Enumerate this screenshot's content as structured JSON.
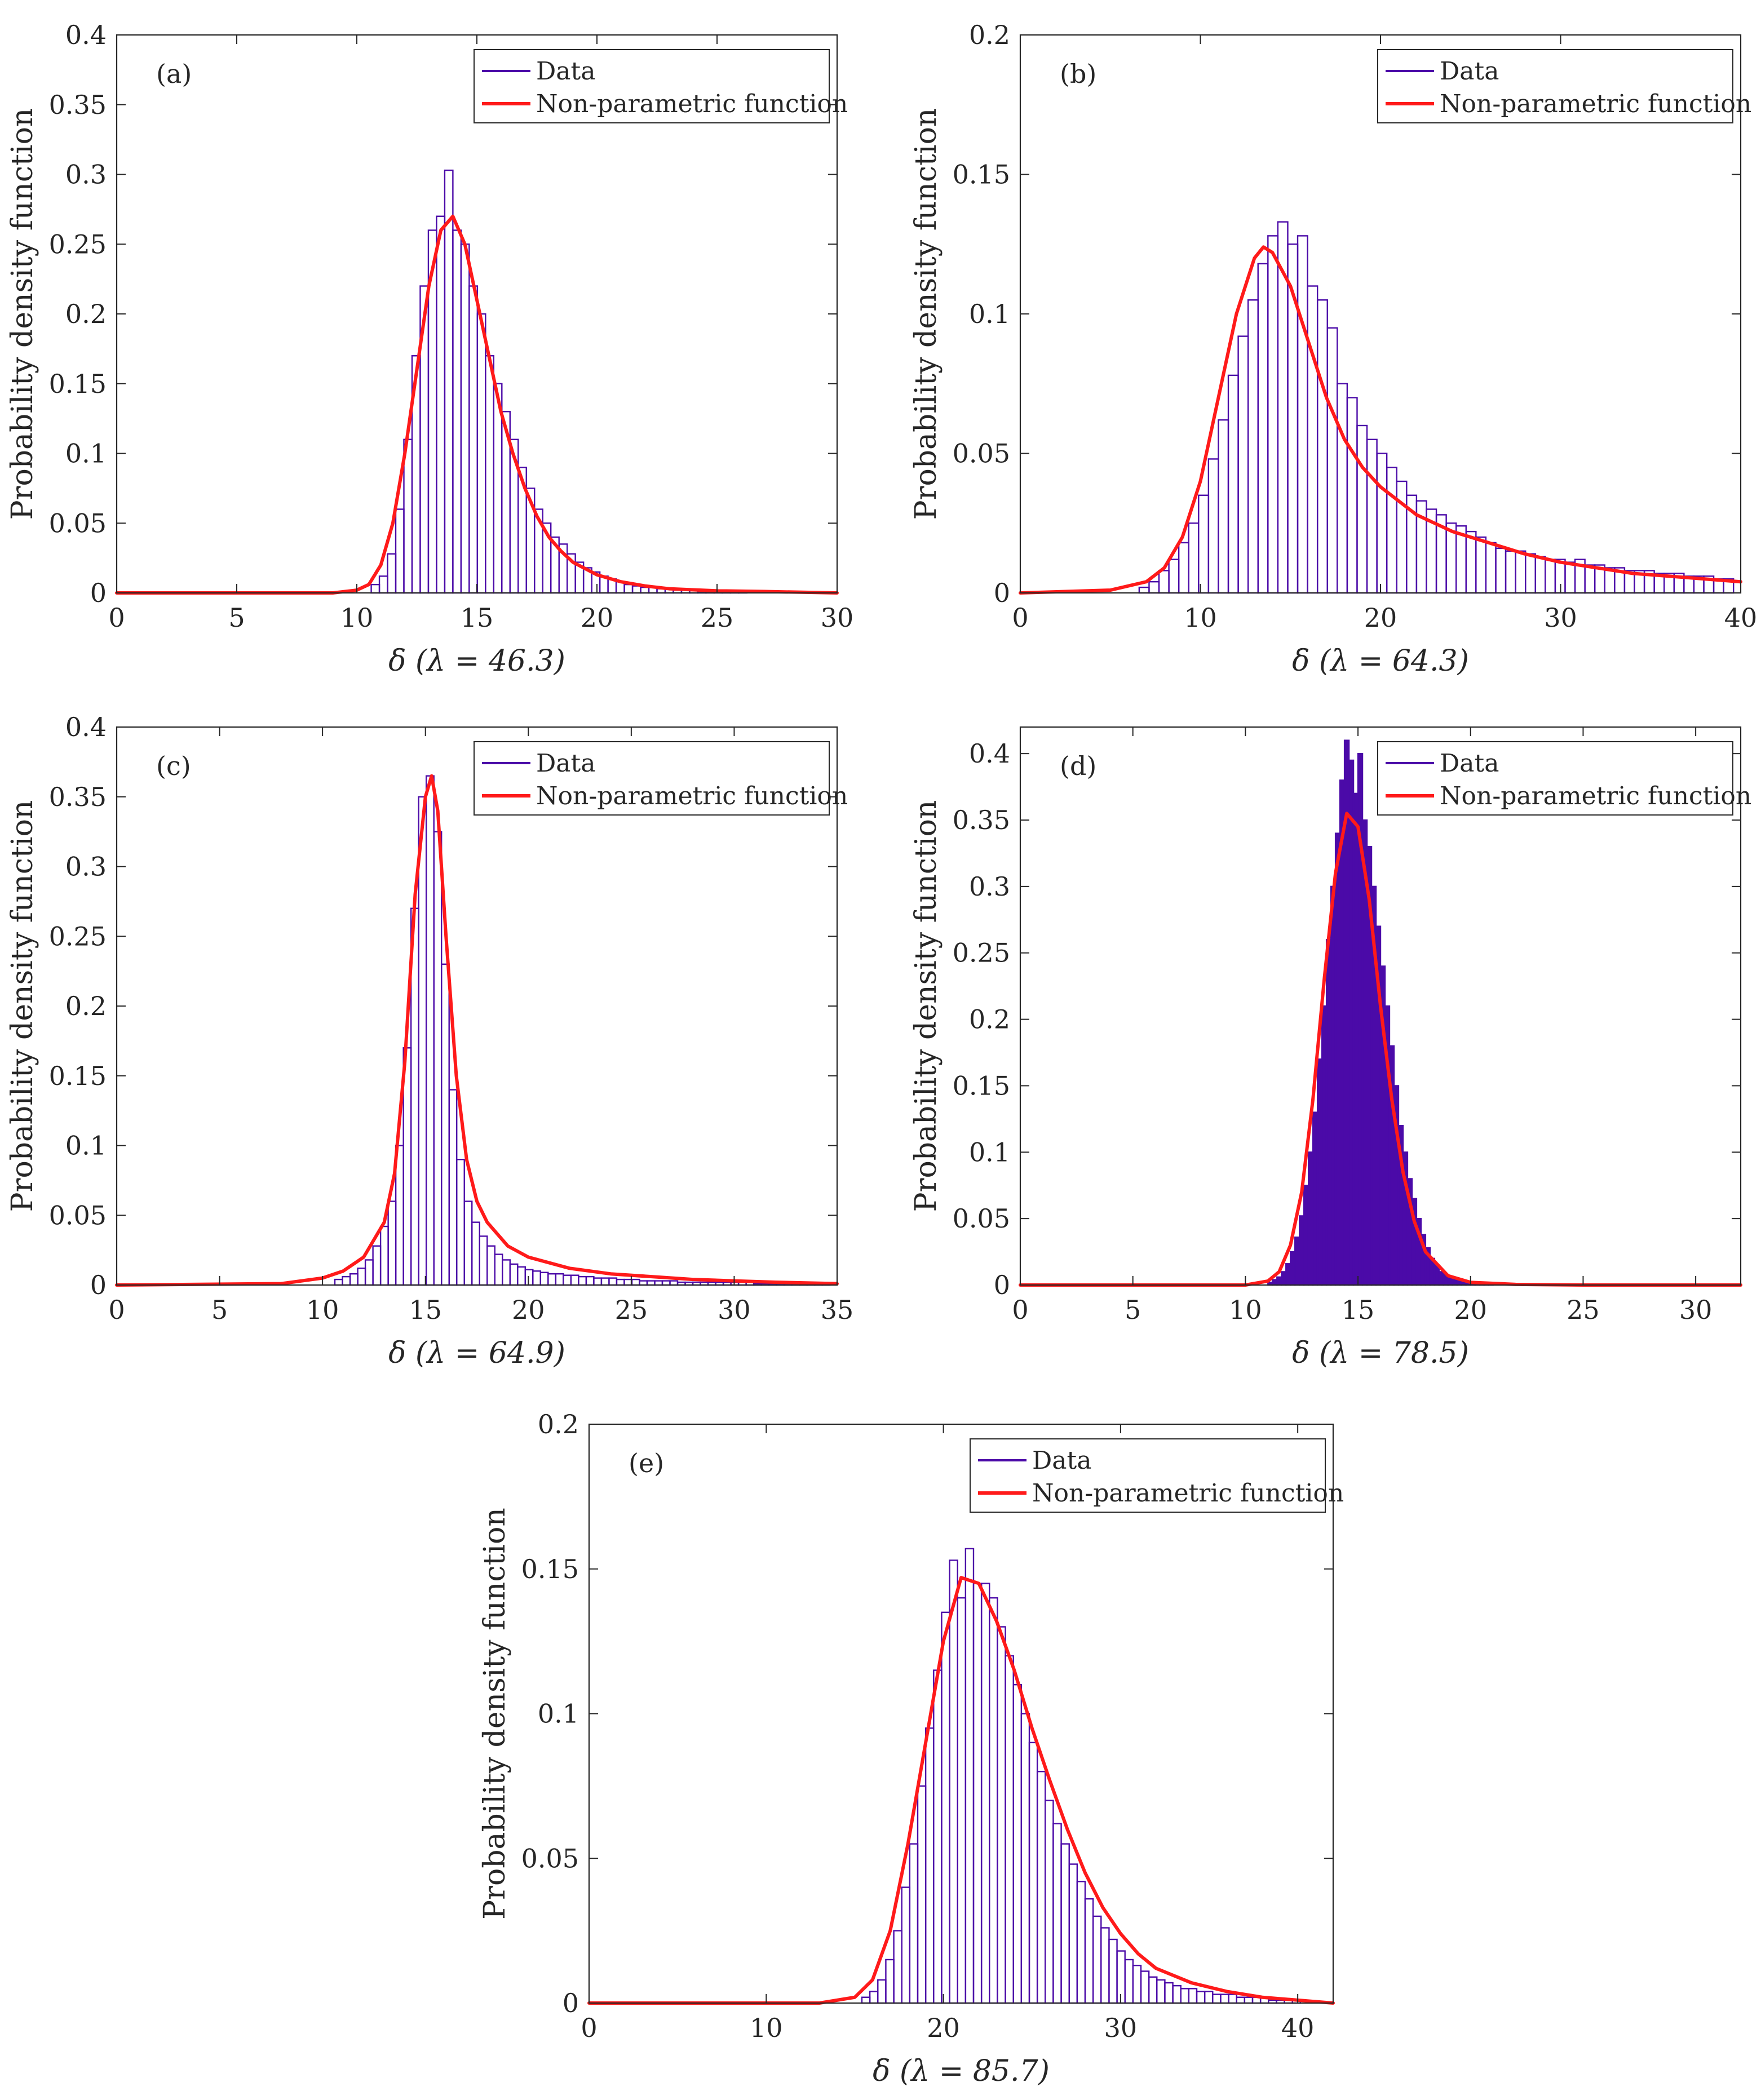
{
  "colors": {
    "data": "#4B0AA8",
    "fit": "#FF1A1A",
    "axis": "#262626",
    "fill": "#4B0AA8"
  },
  "legend": {
    "data_label": "Data",
    "fit_label": "Non-parametric function"
  },
  "chart_data": [
    {
      "type": "histogram",
      "panel": "(a)",
      "xlabel": "δ (λ = 46.3)",
      "ylabel": "Probability density function",
      "xlim": [
        0,
        30
      ],
      "ylim": [
        0,
        0.4
      ],
      "xticks": [
        0,
        5,
        10,
        15,
        20,
        25,
        30
      ],
      "yticks": [
        0,
        0.05,
        0.1,
        0.15,
        0.2,
        0.25,
        0.3,
        0.35,
        0.4
      ],
      "filled": false,
      "legend_position": "top-right",
      "hist": {
        "x_start": 10.6,
        "bin_width": 0.34,
        "values": [
          0.006,
          0.012,
          0.028,
          0.06,
          0.11,
          0.17,
          0.22,
          0.26,
          0.27,
          0.303,
          0.26,
          0.25,
          0.22,
          0.2,
          0.17,
          0.15,
          0.13,
          0.11,
          0.09,
          0.075,
          0.06,
          0.05,
          0.04,
          0.035,
          0.028,
          0.022,
          0.018,
          0.015,
          0.012,
          0.01,
          0.008,
          0.006,
          0.005,
          0.004,
          0.004,
          0.003,
          0.003,
          0.002,
          0.002,
          0.002,
          0.001,
          0.001,
          0.001,
          0.001,
          0.001,
          0.001
        ]
      },
      "curve": {
        "x": [
          0,
          9,
          10,
          10.5,
          11,
          11.5,
          12,
          12.5,
          13,
          13.5,
          14,
          14.5,
          15,
          15.5,
          16,
          16.5,
          17,
          17.5,
          18,
          18.5,
          19,
          20,
          21,
          22,
          23,
          25,
          27,
          30
        ],
        "y": [
          0,
          0,
          0.002,
          0.006,
          0.02,
          0.05,
          0.1,
          0.16,
          0.22,
          0.26,
          0.27,
          0.25,
          0.21,
          0.17,
          0.13,
          0.1,
          0.075,
          0.055,
          0.04,
          0.03,
          0.022,
          0.013,
          0.008,
          0.005,
          0.003,
          0.0015,
          0.001,
          0
        ]
      }
    },
    {
      "type": "histogram",
      "panel": "(b)",
      "xlabel": "δ (λ = 64.3)",
      "ylabel": "Probability density function",
      "xlim": [
        0,
        40
      ],
      "ylim": [
        0,
        0.2
      ],
      "xticks": [
        0,
        10,
        20,
        30,
        40
      ],
      "yticks": [
        0,
        0.05,
        0.1,
        0.15,
        0.2
      ],
      "filled": false,
      "legend_position": "top-right",
      "hist": {
        "x_start": 6.6,
        "bin_width": 0.55,
        "values": [
          0.002,
          0.004,
          0.008,
          0.012,
          0.018,
          0.025,
          0.035,
          0.048,
          0.062,
          0.078,
          0.092,
          0.105,
          0.118,
          0.128,
          0.133,
          0.125,
          0.128,
          0.11,
          0.105,
          0.095,
          0.075,
          0.07,
          0.06,
          0.055,
          0.05,
          0.045,
          0.04,
          0.035,
          0.033,
          0.03,
          0.028,
          0.025,
          0.024,
          0.022,
          0.02,
          0.018,
          0.016,
          0.015,
          0.015,
          0.014,
          0.013,
          0.012,
          0.012,
          0.011,
          0.012,
          0.01,
          0.01,
          0.009,
          0.009,
          0.008,
          0.008,
          0.008,
          0.007,
          0.007,
          0.007,
          0.006,
          0.006,
          0.006,
          0.005,
          0.005,
          0.005
        ]
      },
      "curve": {
        "x": [
          0,
          5,
          7,
          8,
          9,
          10,
          11,
          12,
          13,
          13.5,
          14,
          15,
          16,
          17,
          18,
          19,
          20,
          22,
          24,
          26,
          28,
          30,
          32,
          34,
          36,
          38,
          40
        ],
        "y": [
          0,
          0.001,
          0.004,
          0.009,
          0.02,
          0.04,
          0.07,
          0.1,
          0.12,
          0.124,
          0.122,
          0.11,
          0.09,
          0.07,
          0.055,
          0.045,
          0.038,
          0.028,
          0.022,
          0.018,
          0.014,
          0.011,
          0.009,
          0.007,
          0.006,
          0.005,
          0.004
        ]
      }
    },
    {
      "type": "histogram",
      "panel": "(c)",
      "xlabel": "δ (λ = 64.9)",
      "ylabel": "Probability density function",
      "xlim": [
        0,
        35
      ],
      "ylim": [
        0,
        0.4
      ],
      "xticks": [
        0,
        5,
        10,
        15,
        20,
        25,
        30,
        35
      ],
      "yticks": [
        0,
        0.05,
        0.1,
        0.15,
        0.2,
        0.25,
        0.3,
        0.35,
        0.4
      ],
      "filled": false,
      "legend_position": "top-right",
      "hist": {
        "x_start": 10.6,
        "bin_width": 0.37,
        "values": [
          0.004,
          0.006,
          0.008,
          0.012,
          0.018,
          0.028,
          0.042,
          0.06,
          0.1,
          0.17,
          0.27,
          0.35,
          0.365,
          0.325,
          0.23,
          0.14,
          0.09,
          0.06,
          0.045,
          0.035,
          0.028,
          0.022,
          0.018,
          0.015,
          0.013,
          0.011,
          0.01,
          0.009,
          0.008,
          0.008,
          0.007,
          0.007,
          0.006,
          0.006,
          0.005,
          0.005,
          0.005,
          0.004,
          0.004,
          0.004,
          0.003,
          0.003,
          0.003,
          0.003,
          0.003,
          0.002,
          0.002,
          0.002,
          0.002,
          0.002,
          0.002,
          0.002,
          0.002,
          0.002,
          0.002,
          0.001,
          0.001,
          0.001,
          0.001,
          0.001,
          0.001,
          0.001,
          0.001,
          0.001,
          0.001
        ]
      },
      "curve": {
        "x": [
          0,
          8,
          10,
          11,
          12,
          13,
          13.5,
          14,
          14.5,
          15,
          15.3,
          15.6,
          16,
          16.5,
          17,
          17.5,
          18,
          19,
          20,
          22,
          24,
          26,
          28,
          30,
          32,
          35
        ],
        "y": [
          0,
          0.001,
          0.005,
          0.01,
          0.02,
          0.045,
          0.08,
          0.16,
          0.28,
          0.35,
          0.365,
          0.34,
          0.25,
          0.15,
          0.09,
          0.06,
          0.045,
          0.028,
          0.02,
          0.012,
          0.008,
          0.006,
          0.004,
          0.003,
          0.002,
          0.001
        ]
      }
    },
    {
      "type": "histogram",
      "panel": "(d)",
      "xlabel": "δ (λ = 78.5)",
      "ylabel": "Probability density function",
      "xlim": [
        0,
        32
      ],
      "ylim": [
        0,
        0.42
      ],
      "xticks": [
        0,
        5,
        10,
        15,
        20,
        25,
        30
      ],
      "yticks": [
        0,
        0.05,
        0.1,
        0.15,
        0.2,
        0.25,
        0.3,
        0.35,
        0.4
      ],
      "filled": true,
      "legend_position": "top-right",
      "hist": {
        "x_start": 11.0,
        "bin_width": 0.2,
        "values": [
          0.002,
          0.004,
          0.006,
          0.01,
          0.016,
          0.025,
          0.036,
          0.052,
          0.075,
          0.1,
          0.13,
          0.17,
          0.21,
          0.26,
          0.3,
          0.34,
          0.38,
          0.41,
          0.395,
          0.37,
          0.4,
          0.35,
          0.33,
          0.3,
          0.27,
          0.24,
          0.21,
          0.18,
          0.15,
          0.12,
          0.1,
          0.08,
          0.065,
          0.05,
          0.038,
          0.028,
          0.02,
          0.015,
          0.01,
          0.008,
          0.006,
          0.004,
          0.003,
          0.002,
          0.002,
          0.001,
          0.001,
          0.001,
          0.001,
          0.001
        ]
      },
      "curve": {
        "x": [
          0,
          10,
          11,
          11.5,
          12,
          12.5,
          13,
          13.5,
          14,
          14.5,
          15,
          15.5,
          16,
          16.5,
          17,
          17.5,
          18,
          19,
          20,
          22,
          25,
          32
        ],
        "y": [
          0,
          0,
          0.003,
          0.01,
          0.03,
          0.07,
          0.14,
          0.23,
          0.31,
          0.355,
          0.345,
          0.29,
          0.21,
          0.14,
          0.085,
          0.048,
          0.025,
          0.007,
          0.002,
          0.0005,
          0,
          0
        ]
      }
    },
    {
      "type": "histogram",
      "panel": "(e)",
      "xlabel": "δ (λ = 85.7)",
      "ylabel": "Probability density function",
      "xlim": [
        0,
        42
      ],
      "ylim": [
        0,
        0.2
      ],
      "xticks": [
        0,
        10,
        20,
        30,
        40
      ],
      "yticks": [
        0,
        0.05,
        0.1,
        0.15,
        0.2
      ],
      "filled": false,
      "legend_position": "top-right",
      "hist": {
        "x_start": 15.4,
        "bin_width": 0.45,
        "values": [
          0.002,
          0.004,
          0.008,
          0.015,
          0.025,
          0.04,
          0.055,
          0.075,
          0.095,
          0.115,
          0.135,
          0.153,
          0.14,
          0.157,
          0.145,
          0.145,
          0.14,
          0.13,
          0.12,
          0.11,
          0.1,
          0.09,
          0.08,
          0.07,
          0.062,
          0.055,
          0.048,
          0.042,
          0.036,
          0.03,
          0.026,
          0.022,
          0.018,
          0.015,
          0.013,
          0.011,
          0.009,
          0.008,
          0.007,
          0.006,
          0.005,
          0.005,
          0.004,
          0.004,
          0.003,
          0.003,
          0.003,
          0.002,
          0.002,
          0.002,
          0.002,
          0.001,
          0.001,
          0.001,
          0.001
        ]
      },
      "curve": {
        "x": [
          0,
          13,
          15,
          16,
          17,
          18,
          19,
          20,
          21,
          22,
          23,
          24,
          25,
          26,
          27,
          28,
          29,
          30,
          31,
          32,
          34,
          36,
          38,
          42
        ],
        "y": [
          0,
          0,
          0.002,
          0.008,
          0.025,
          0.055,
          0.09,
          0.125,
          0.147,
          0.145,
          0.132,
          0.115,
          0.095,
          0.077,
          0.06,
          0.045,
          0.033,
          0.024,
          0.017,
          0.012,
          0.007,
          0.004,
          0.002,
          0
        ]
      }
    }
  ]
}
